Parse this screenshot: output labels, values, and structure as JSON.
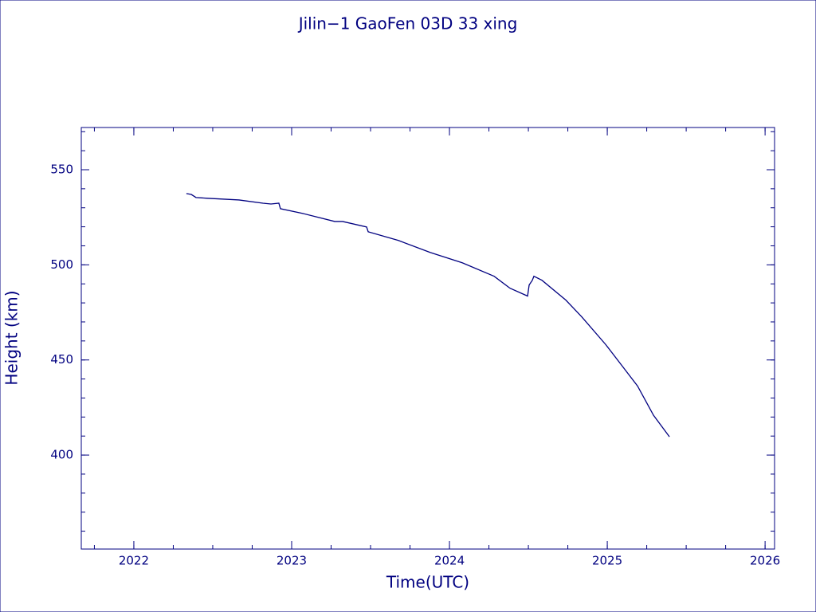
{
  "chart_data": {
    "type": "line",
    "title": "Jilin−1 GaoFen 03D 33 xing",
    "x_label": "Time(UTC)",
    "y_label": "Height (km)",
    "xlim": [
      2021.667,
      2026.06
    ],
    "ylim": [
      350.6,
      572.2
    ],
    "xticks": [
      2022,
      2023,
      2024,
      2025,
      2026
    ],
    "yticks": [
      400,
      450,
      500,
      550
    ],
    "series": [
      {
        "name": "Height",
        "color": "#000080",
        "x": [
          2022.333,
          2022.364,
          2022.394,
          2022.465,
          2022.667,
          2022.818,
          2022.869,
          2022.919,
          2022.929,
          2023.071,
          2023.273,
          2023.323,
          2023.475,
          2023.485,
          2023.677,
          2023.879,
          2024.081,
          2024.283,
          2024.384,
          2024.495,
          2024.505,
          2024.525,
          2024.535,
          2024.586,
          2024.737,
          2024.838,
          2024.99,
          2025.091,
          2025.192,
          2025.293,
          2025.394
        ],
        "values": [
          537.5,
          537.0,
          535.4,
          535.0,
          534.1,
          532.4,
          532.0,
          532.4,
          529.5,
          527.0,
          522.8,
          522.8,
          519.9,
          517.4,
          512.8,
          506.5,
          501.1,
          494.0,
          487.7,
          483.6,
          489.4,
          491.9,
          494.0,
          491.9,
          481.5,
          472.7,
          458.1,
          447.2,
          436.3,
          420.9,
          409.6
        ]
      }
    ]
  }
}
